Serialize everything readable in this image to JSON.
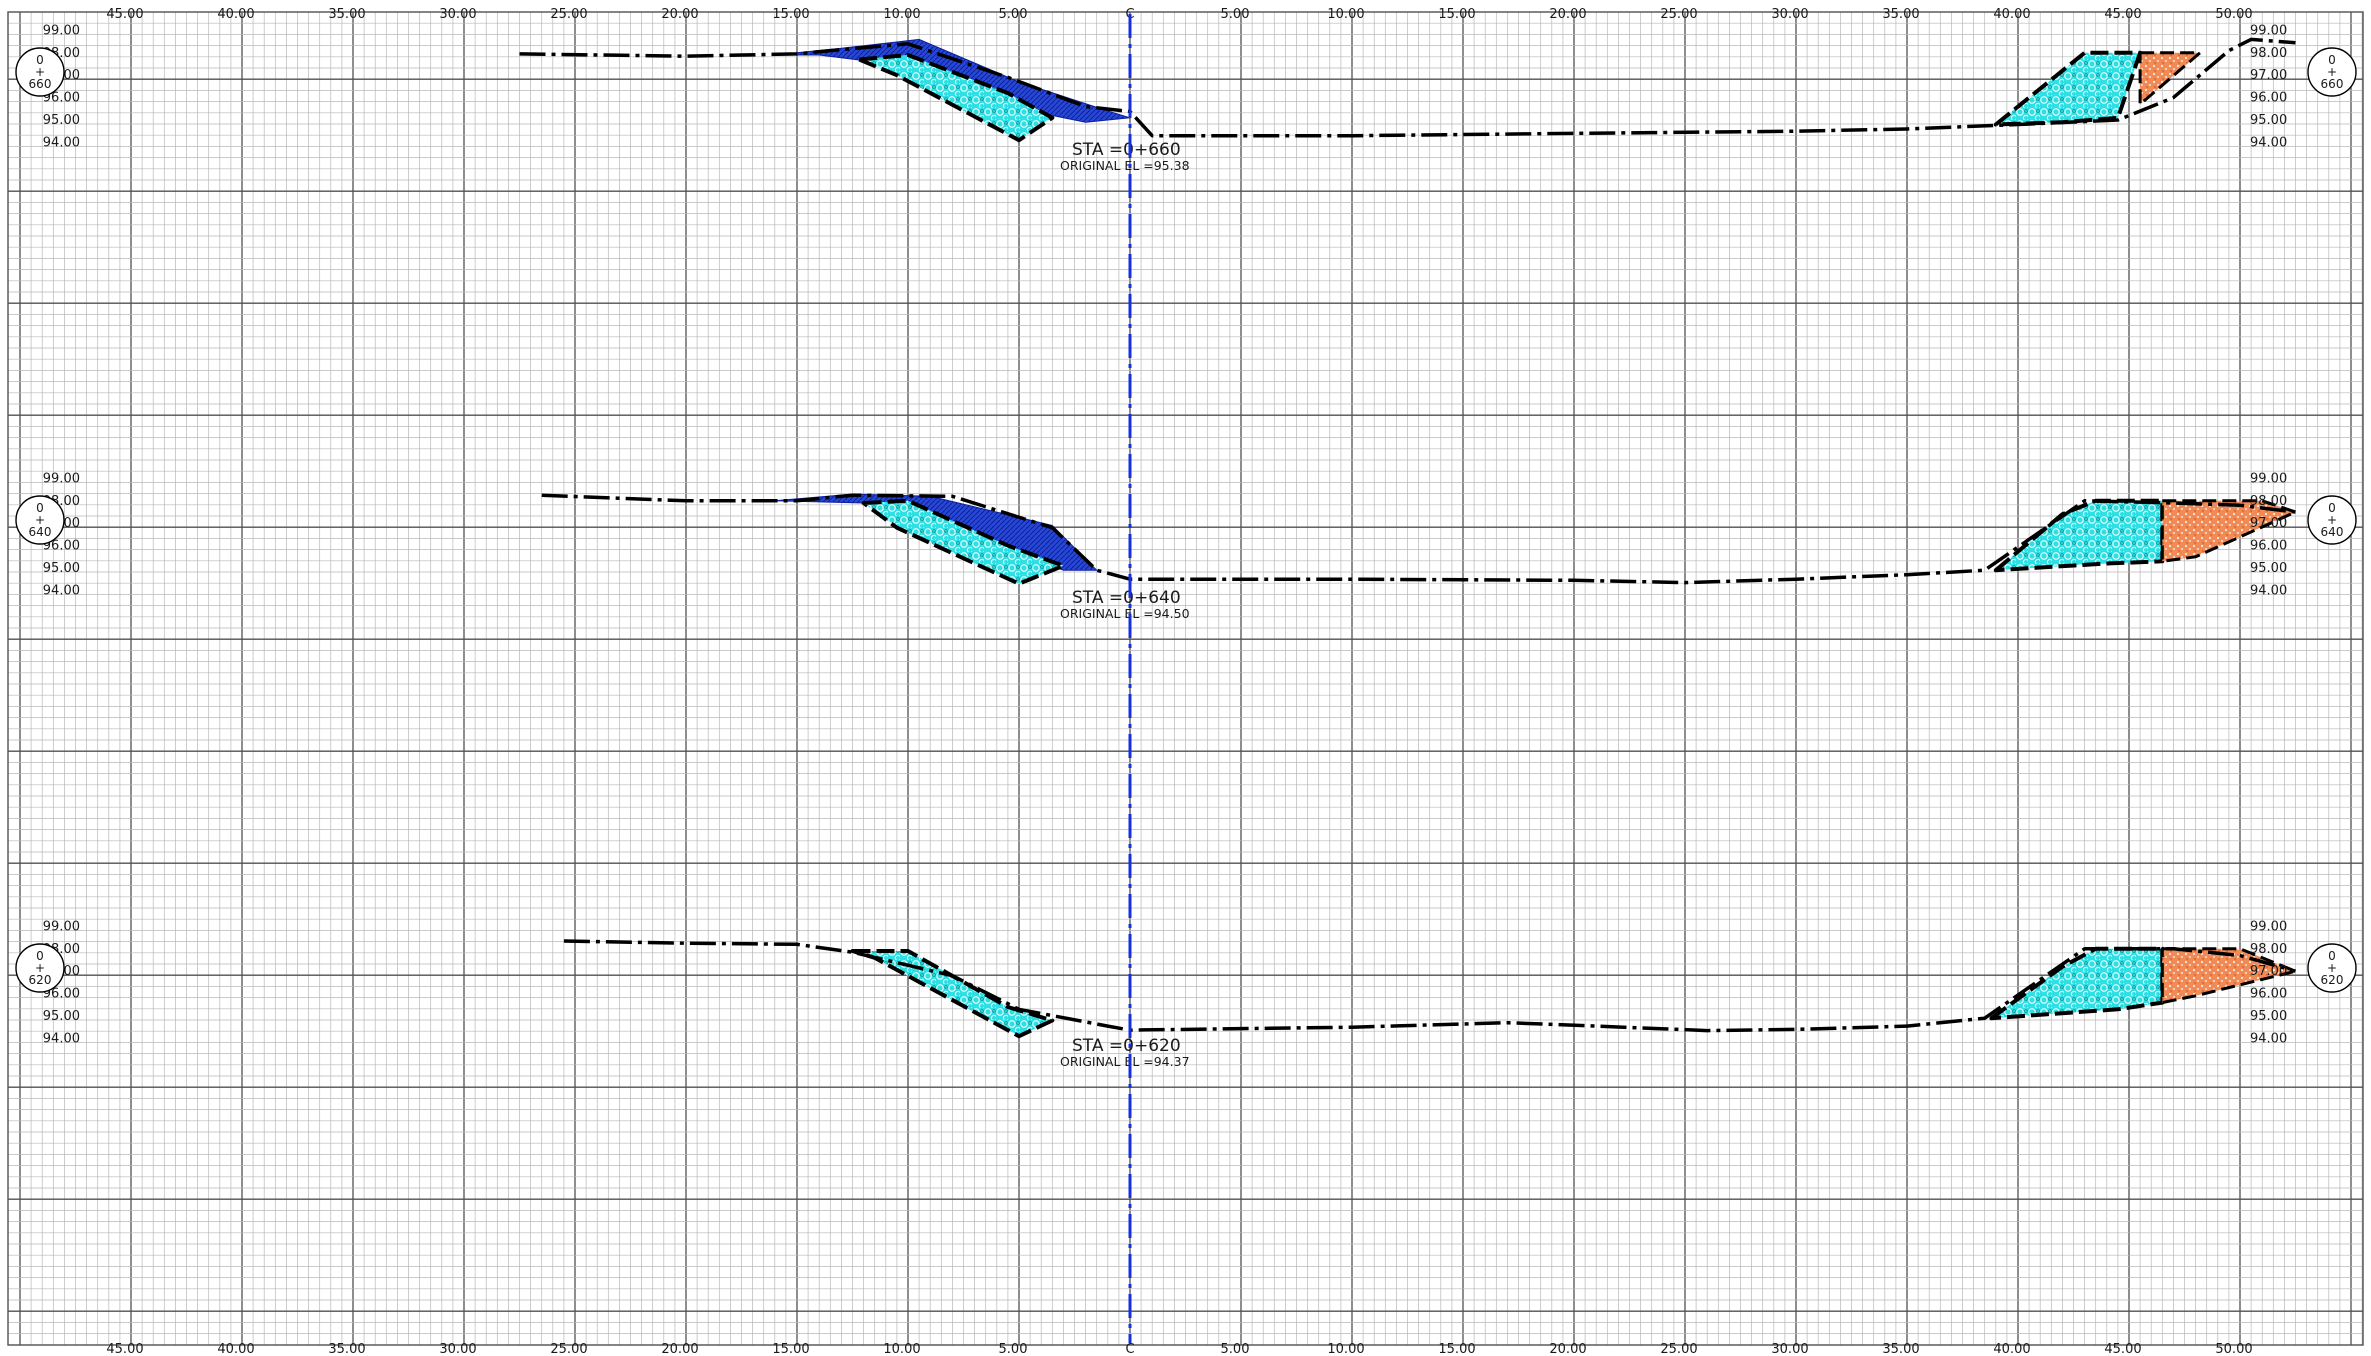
{
  "colors": {
    "background": "#ffffff",
    "grid_minor": "#b8b8b8",
    "grid_major": "#505050",
    "ground_line": "#000000",
    "centerline": "#1530e0",
    "cut_fill": "#2748d6",
    "embankment_fill": "#2ee0e4",
    "soil_fill": "#f28a55"
  },
  "icons": [
    "station-circle-icon"
  ],
  "offset_axis": {
    "top_labels": [
      "45.00",
      "40.00",
      "35.00",
      "30.00",
      "25.00",
      "20.00",
      "15.00",
      "10.00",
      "5.00",
      "C",
      "5.00",
      "10.00",
      "15.00",
      "20.00",
      "25.00",
      "30.00",
      "35.00",
      "40.00",
      "45.00",
      "50.00"
    ],
    "bottom_labels": [
      "45.00",
      "40.00",
      "35.00",
      "30.00",
      "25.00",
      "20.00",
      "15.00",
      "10.00",
      "5.00",
      "C",
      "5.00",
      "10.00",
      "15.00",
      "20.00",
      "25.00",
      "30.00",
      "35.00",
      "40.00",
      "45.00",
      "50.00"
    ]
  },
  "sections": [
    {
      "station_label": "STA =0+660",
      "original_el_label": "ORIGINAL EL =95.38",
      "marker": {
        "top": "0",
        "mid": "+",
        "bottom": "660"
      },
      "elevation_labels": [
        "99.00",
        "98.00",
        "97.00",
        "96.00",
        "95.00",
        "94.00"
      ],
      "ground_profile": [
        [
          -27.5,
          97.95
        ],
        [
          -20,
          97.85
        ],
        [
          -15,
          97.95
        ],
        [
          -13.5,
          98.1
        ],
        [
          -10,
          98.4
        ],
        [
          -5.5,
          96.9
        ],
        [
          -2,
          95.6
        ],
        [
          0,
          95.38
        ],
        [
          1,
          94.3
        ],
        [
          10,
          94.3
        ],
        [
          20,
          94.4
        ],
        [
          30,
          94.5
        ],
        [
          35,
          94.6
        ],
        [
          40,
          94.8
        ],
        [
          44.5,
          95.0
        ],
        [
          47,
          96.0
        ],
        [
          49.5,
          98.1
        ],
        [
          50.5,
          98.6
        ],
        [
          52.5,
          98.45
        ]
      ],
      "cut_region": [
        [
          -16,
          97.9
        ],
        [
          -13,
          98.2
        ],
        [
          -9.5,
          98.6
        ],
        [
          -5,
          96.7
        ],
        [
          -1,
          95.4
        ],
        [
          0,
          95.1
        ],
        [
          -2,
          94.9
        ],
        [
          -5,
          95.5
        ],
        [
          -10,
          97.4
        ],
        [
          -14,
          97.9
        ]
      ],
      "embankment_left": [
        [
          -12.2,
          97.7
        ],
        [
          -10,
          97.9
        ],
        [
          -5.5,
          96.2
        ],
        [
          -3.5,
          95.1
        ],
        [
          -5,
          94.1
        ],
        [
          -10.5,
          97.0
        ]
      ],
      "embankment_right": [
        [
          39,
          94.8
        ],
        [
          43,
          98.0
        ],
        [
          45.5,
          98.0
        ],
        [
          44.5,
          95.1
        ],
        [
          42,
          94.9
        ]
      ],
      "soil_right": [
        [
          45.5,
          98.0
        ],
        [
          48.2,
          98.0
        ],
        [
          45.5,
          95.7
        ]
      ]
    },
    {
      "station_label": "STA =0+640",
      "original_el_label": "ORIGINAL EL =94.50",
      "marker": {
        "top": "0",
        "mid": "+",
        "bottom": "640"
      },
      "elevation_labels": [
        "99.00",
        "98.00",
        "97.00",
        "96.00",
        "95.00",
        "94.00"
      ],
      "ground_profile": [
        [
          -26.5,
          98.25
        ],
        [
          -20,
          98.0
        ],
        [
          -15,
          98.0
        ],
        [
          -12.5,
          98.25
        ],
        [
          -8,
          98.2
        ],
        [
          -3.5,
          96.8
        ],
        [
          -1.5,
          94.9
        ],
        [
          0,
          94.5
        ],
        [
          10,
          94.5
        ],
        [
          20,
          94.45
        ],
        [
          25,
          94.35
        ],
        [
          30,
          94.5
        ],
        [
          35,
          94.7
        ],
        [
          38.5,
          94.9
        ],
        [
          43,
          98.0
        ],
        [
          47,
          97.9
        ],
        [
          50,
          97.8
        ],
        [
          52.5,
          97.5
        ]
      ],
      "cut_region": [
        [
          -16,
          98.0
        ],
        [
          -12.5,
          98.3
        ],
        [
          -9,
          98.2
        ],
        [
          -3.5,
          96.9
        ],
        [
          -1.5,
          94.9
        ],
        [
          -3,
          94.9
        ],
        [
          -7,
          96.5
        ],
        [
          -12,
          97.9
        ]
      ],
      "embankment_left": [
        [
          -12,
          97.9
        ],
        [
          -10,
          98.0
        ],
        [
          -5.5,
          96.0
        ],
        [
          -3,
          95.1
        ],
        [
          -5,
          94.3
        ],
        [
          -10.5,
          96.8
        ]
      ],
      "embankment_right": [
        [
          39,
          94.9
        ],
        [
          42,
          97.4
        ],
        [
          43.5,
          98.0
        ],
        [
          46.5,
          98.0
        ],
        [
          46.5,
          95.3
        ],
        [
          44,
          95.2
        ]
      ],
      "soil_right": [
        [
          46.5,
          98.0
        ],
        [
          51,
          98.0
        ],
        [
          52.5,
          97.5
        ],
        [
          48,
          95.5
        ],
        [
          46.5,
          95.3
        ]
      ]
    },
    {
      "station_label": "STA =0+620",
      "original_el_label": "ORIGINAL EL =94.37",
      "marker": {
        "top": "0",
        "mid": "+",
        "bottom": "620"
      },
      "elevation_labels": [
        "99.00",
        "98.00",
        "97.00",
        "96.00",
        "95.00",
        "94.00"
      ],
      "ground_profile": [
        [
          -25.5,
          98.35
        ],
        [
          -20,
          98.25
        ],
        [
          -15,
          98.2
        ],
        [
          -12.5,
          97.85
        ],
        [
          -8,
          96.8
        ],
        [
          -5,
          95.3
        ],
        [
          -1,
          94.55
        ],
        [
          0,
          94.37
        ],
        [
          10,
          94.5
        ],
        [
          17,
          94.7
        ],
        [
          21,
          94.55
        ],
        [
          26,
          94.35
        ],
        [
          30,
          94.4
        ],
        [
          35,
          94.55
        ],
        [
          38.5,
          94.9
        ],
        [
          43,
          98.0
        ],
        [
          47,
          98.0
        ],
        [
          50,
          97.7
        ],
        [
          52.5,
          97.0
        ]
      ],
      "cut_region": [],
      "embankment_left": [
        [
          -12.5,
          97.9
        ],
        [
          -10,
          97.9
        ],
        [
          -5.5,
          95.4
        ],
        [
          -3.5,
          94.8
        ],
        [
          -5,
          94.1
        ],
        [
          -11.5,
          97.6
        ]
      ],
      "embankment_right": [
        [
          38.8,
          94.9
        ],
        [
          42,
          97.2
        ],
        [
          43.5,
          98.0
        ],
        [
          46.5,
          98.0
        ],
        [
          46.5,
          95.6
        ],
        [
          44.5,
          95.3
        ]
      ],
      "soil_right": [
        [
          46.5,
          98.0
        ],
        [
          50,
          98.0
        ],
        [
          52.5,
          97.0
        ],
        [
          48,
          95.9
        ],
        [
          46.5,
          95.6
        ]
      ]
    }
  ]
}
